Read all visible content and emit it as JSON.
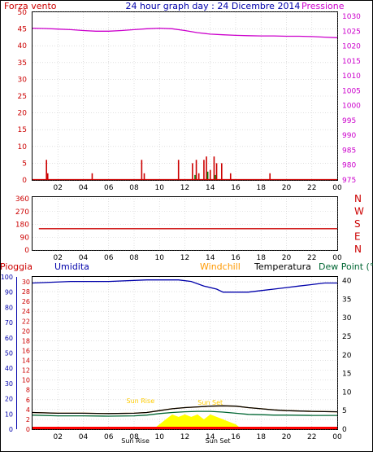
{
  "header": {
    "left_title": "Forza vento",
    "center_title": "24 hour graph day : 24 Dicembre 2014",
    "right_title": "Pressione"
  },
  "colors": {
    "wind": "#cc0000",
    "gust_marks": "#007700",
    "pressure": "#cc00cc",
    "axis_red": "#cc0000",
    "axis_blue": "#0000aa",
    "humidity": "#0000aa",
    "temperature": "#000000",
    "dewpoint": "#006633",
    "windchill": "#ff9900",
    "rain": "#ff0000",
    "solar": "#ffff00",
    "sun_label": "#ffcc00",
    "frame": "#000000",
    "grid": "#cccccc"
  },
  "chart_data": [
    {
      "type": "line",
      "title": "24 hour graph day : 24 Dicembre 2014",
      "x_ticks": [
        "02",
        "04",
        "06",
        "08",
        "10",
        "12",
        "14",
        "16",
        "18",
        "20",
        "22",
        "00"
      ],
      "y_left": {
        "label": "Forza vento",
        "ticks": [
          0,
          5,
          10,
          15,
          20,
          25,
          30,
          35,
          40,
          45,
          50
        ],
        "lim": [
          0,
          50
        ]
      },
      "y_right": {
        "label": "Pressione",
        "ticks": [
          975,
          980,
          985,
          990,
          995,
          1000,
          1005,
          1010,
          1015,
          1020,
          1025,
          1030
        ],
        "lim": [
          975,
          1030
        ]
      },
      "grid": true,
      "series": [
        {
          "name": "Pressione",
          "axis": "right",
          "x": [
            0,
            1,
            2,
            3,
            4,
            5,
            6,
            7,
            8,
            9,
            10,
            11,
            12,
            13,
            14,
            15,
            16,
            17,
            18,
            19,
            20,
            21,
            22,
            23,
            24
          ],
          "values": [
            1026.0,
            1025.9,
            1025.7,
            1025.5,
            1025.2,
            1025.0,
            1025.0,
            1025.2,
            1025.5,
            1025.8,
            1026.0,
            1025.8,
            1025.2,
            1024.5,
            1024.0,
            1023.8,
            1023.6,
            1023.5,
            1023.4,
            1023.4,
            1023.3,
            1023.3,
            1023.2,
            1023.0,
            1022.8
          ]
        },
        {
          "name": "Forza vento",
          "axis": "left",
          "type": "bar",
          "x": [
            1.1,
            1.2,
            4.7,
            8.6,
            8.8,
            11.5,
            12.6,
            12.9,
            13.1,
            13.5,
            13.7,
            14.0,
            14.3,
            14.5,
            14.9,
            15.6,
            18.7
          ],
          "values": [
            6,
            2,
            2,
            6,
            2,
            6,
            5,
            6,
            2,
            6,
            7,
            3,
            7,
            5,
            5,
            2,
            2
          ]
        },
        {
          "name": "Raffiche",
          "axis": "left",
          "type": "bar",
          "x": [
            12.8,
            13.8,
            14.4
          ],
          "values": [
            1,
            2,
            1
          ]
        }
      ]
    },
    {
      "type": "line",
      "x_ticks": [
        "02",
        "04",
        "06",
        "08",
        "10",
        "12",
        "14",
        "16",
        "18",
        "20",
        "22",
        "00"
      ],
      "y_left": {
        "ticks": [
          0,
          90,
          180,
          270,
          360
        ],
        "lim": [
          0,
          360
        ]
      },
      "direction_labels": [
        "N",
        "W",
        "S",
        "E",
        "N"
      ],
      "grid": true,
      "series": [
        {
          "name": "Direzione vento",
          "x": [
            0.5,
            24
          ],
          "values": [
            150,
            150
          ]
        }
      ]
    },
    {
      "type": "line",
      "x_ticks": [
        "02",
        "04",
        "06",
        "08",
        "10",
        "12",
        "14",
        "16",
        "18",
        "20",
        "22",
        "00"
      ],
      "legend": [
        "Pioggia",
        "Umidita",
        "Windchill",
        "Temperatura",
        "Dew Point (°C"
      ],
      "y_outer_left": {
        "label": "Umidita",
        "ticks": [
          0,
          10,
          20,
          30,
          40,
          50,
          60,
          70,
          80,
          90,
          100
        ],
        "lim": [
          0,
          100
        ]
      },
      "y_inner_left": {
        "label": "Pioggia",
        "ticks": [
          0,
          2,
          4,
          6,
          8,
          10,
          12,
          14,
          16,
          18,
          20,
          22,
          24,
          26,
          28,
          30
        ],
        "lim": [
          0,
          31
        ]
      },
      "y_right": {
        "ticks": [
          0,
          5,
          10,
          15,
          20,
          25,
          30,
          35,
          40
        ],
        "lim": [
          0,
          41
        ]
      },
      "sun_labels": [
        "Sun Rise",
        "Sun Set",
        "Sun Rise",
        "Sun Set"
      ],
      "grid": true,
      "series": [
        {
          "name": "Umidita",
          "axis": "outer_left",
          "x": [
            0,
            3,
            6,
            9,
            11.5,
            12.5,
            13.5,
            14.5,
            15,
            16,
            17,
            18,
            19,
            20,
            21,
            22,
            23,
            24
          ],
          "values": [
            96,
            97,
            97,
            98,
            98,
            97,
            94,
            92,
            90,
            90,
            90,
            91,
            92,
            93,
            94,
            95,
            96,
            96
          ]
        },
        {
          "name": "Temperatura",
          "axis": "right",
          "x": [
            0,
            2,
            4,
            6,
            8,
            9,
            10,
            11,
            12,
            13,
            14,
            15,
            16,
            17,
            18,
            19,
            20,
            22,
            24
          ],
          "values": [
            4.5,
            4.3,
            4.3,
            4.2,
            4.3,
            4.5,
            5.0,
            5.5,
            5.8,
            6.0,
            6.2,
            6.3,
            6.2,
            5.8,
            5.5,
            5.2,
            5.0,
            4.8,
            4.7
          ]
        },
        {
          "name": "Dew Point (°C",
          "axis": "right",
          "x": [
            0,
            2,
            4,
            6,
            8,
            9,
            10,
            11,
            12,
            13,
            14,
            15,
            16,
            17,
            18,
            19,
            20,
            22,
            24
          ],
          "values": [
            3.8,
            3.6,
            3.6,
            3.5,
            3.6,
            3.8,
            4.2,
            4.5,
            4.7,
            4.8,
            4.8,
            4.6,
            4.3,
            4.0,
            3.9,
            3.8,
            3.8,
            3.7,
            3.7
          ]
        },
        {
          "name": "Windchill",
          "axis": "right",
          "x": [
            0,
            2,
            4,
            6,
            8,
            9,
            10,
            11,
            12,
            13,
            14,
            15,
            16,
            17,
            18,
            19,
            20,
            22,
            24
          ],
          "values": [
            4.5,
            4.3,
            4.3,
            4.2,
            4.3,
            4.5,
            5.0,
            5.5,
            5.8,
            6.0,
            6.2,
            6.3,
            6.2,
            5.8,
            5.5,
            5.2,
            5.0,
            4.8,
            4.7
          ]
        },
        {
          "name": "Solare",
          "axis": "inner_left",
          "type": "area",
          "x": [
            9.5,
            10,
            10.5,
            11,
            11.5,
            12,
            12.5,
            13,
            13.5,
            14,
            14.5,
            15,
            15.5,
            16,
            16.5
          ],
          "values": [
            0,
            1,
            2,
            3,
            2.5,
            3,
            2.5,
            3,
            2,
            3,
            2.5,
            2,
            1.5,
            1,
            0
          ]
        },
        {
          "name": "Pioggia",
          "axis": "inner_left",
          "x": [
            0,
            24
          ],
          "values": [
            0,
            0
          ]
        }
      ]
    }
  ]
}
